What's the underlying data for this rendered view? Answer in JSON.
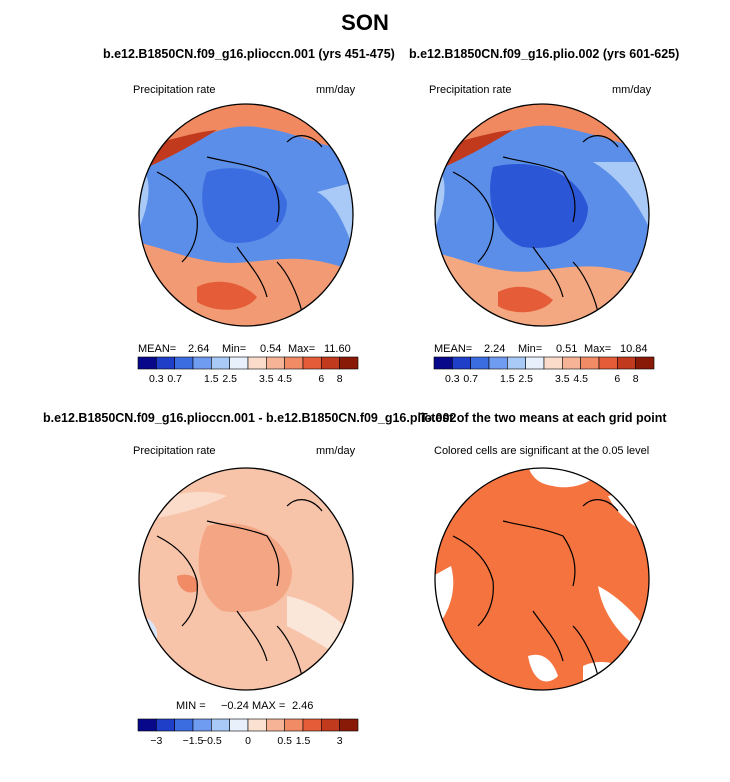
{
  "figure_title": "SON",
  "chart_data": [
    {
      "type": "heatmap",
      "title": "b.e12.B1850CN.f09_g16.plioccn.001 (yrs 451-475)",
      "variable": "Precipitation rate",
      "units": "mm/day",
      "projection": "north polar stereographic",
      "stats": {
        "mean_label": "MEAN=",
        "mean": "2.64",
        "min_label": "Min=",
        "min": "0.54",
        "max_label": "Max=",
        "max": "11.60"
      },
      "colorbar": {
        "labels": [
          "0.3",
          "0.7",
          "1.5",
          "2.5",
          "3.5",
          "4.5",
          "6",
          "8"
        ],
        "colors": [
          "#08088a",
          "#1f3fc8",
          "#3b6ce0",
          "#6f9cf0",
          "#a9c9f6",
          "#e8f0fb",
          "#fbdccb",
          "#f6b395",
          "#f08b66",
          "#e45d38",
          "#c23a1d",
          "#8a1a08"
        ]
      }
    },
    {
      "type": "heatmap",
      "title": "b.e12.B1850CN.f09_g16.plio.002 (yrs 601-625)",
      "variable": "Precipitation rate",
      "units": "mm/day",
      "projection": "north polar stereographic",
      "stats": {
        "mean_label": "MEAN=",
        "mean": "2.24",
        "min_label": "Min=",
        "min": "0.51",
        "max_label": "Max=",
        "max": "10.84"
      },
      "colorbar": {
        "labels": [
          "0.3",
          "0.7",
          "1.5",
          "2.5",
          "3.5",
          "4.5",
          "6",
          "8"
        ],
        "colors": [
          "#08088a",
          "#1f3fc8",
          "#3b6ce0",
          "#6f9cf0",
          "#a9c9f6",
          "#e8f0fb",
          "#fbdccb",
          "#f6b395",
          "#f08b66",
          "#e45d38",
          "#c23a1d",
          "#8a1a08"
        ]
      }
    },
    {
      "type": "heatmap",
      "title": "b.e12.B1850CN.f09_g16.plioccn.001 - b.e12.B1850CN.f09_g16.plio.002",
      "variable": "Precipitation rate",
      "units": "mm/day",
      "projection": "north polar stereographic",
      "stats": {
        "min_label": "MIN =",
        "min": "−0.24",
        "max_label": "MAX =",
        "max": "2.46"
      },
      "colorbar": {
        "labels": [
          "−3",
          "−1.5",
          "−0.5",
          "0",
          "0.5",
          "1.5",
          "3"
        ],
        "colors": [
          "#08088a",
          "#1f3fc8",
          "#3b6ce0",
          "#6f9cf0",
          "#a9c9f6",
          "#e8f0fb",
          "#fbe1d2",
          "#f6b395",
          "#f08b66",
          "#e45d38",
          "#c23a1d",
          "#8a1a08"
        ]
      }
    },
    {
      "type": "heatmap",
      "title": "T-test of the two means at each grid point",
      "subtitle": "Colored cells are significant at the 0.05 level",
      "projection": "north polar stereographic",
      "significant_color": "#f4733f"
    }
  ]
}
